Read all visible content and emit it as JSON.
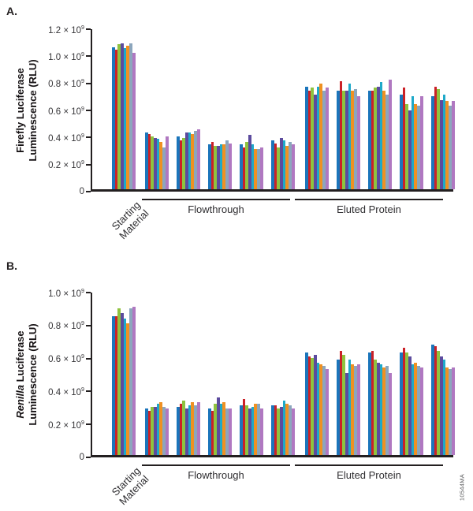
{
  "figure": {
    "code": "10544MA"
  },
  "chart_data": [
    {
      "panel_label": "A.",
      "type": "bar",
      "ylabel_line1_italic": "",
      "ylabel_line1_rest": "Firefly Luciferase",
      "ylabel_line2": "Luminescence (RLU)",
      "unit": "RLU",
      "value_scale": "1e9",
      "ymax": 1.2,
      "ytick_values": [
        1.2,
        1.0,
        0.8,
        0.6,
        0.4,
        0.2,
        0
      ],
      "ytick_labels": [
        "1.2 × 10⁹",
        "1.0 × 10⁹",
        "0.8 × 10⁹",
        "0.6 × 10⁹",
        "0.4 × 10⁹",
        "0.2 × 10⁹",
        "0"
      ],
      "grid": false,
      "legend": false,
      "bar_colors": [
        "#1b75bb",
        "#cb2127",
        "#8fc33f",
        "#5c4b9e",
        "#1ea9c9",
        "#ef9122",
        "#8ca6bd",
        "#b078c1"
      ],
      "sections": [
        {
          "label": "Starting Material",
          "rotated": true,
          "bracket": false,
          "groups": [
            [
              1.05,
              1.03,
              1.07,
              1.08,
              1.04,
              1.06,
              1.08,
              1.01
            ]
          ]
        },
        {
          "label": "Flowthrough",
          "rotated": false,
          "bracket": true,
          "groups": [
            [
              0.42,
              0.41,
              0.39,
              0.38,
              0.37,
              0.35,
              0.31,
              0.39
            ],
            [
              0.39,
              0.36,
              0.38,
              0.42,
              0.42,
              0.41,
              0.43,
              0.44
            ],
            [
              0.33,
              0.35,
              0.32,
              0.32,
              0.33,
              0.33,
              0.36,
              0.34
            ],
            [
              0.33,
              0.31,
              0.35,
              0.4,
              0.33,
              0.3,
              0.3,
              0.31
            ],
            [
              0.36,
              0.34,
              0.31,
              0.38,
              0.36,
              0.32,
              0.35,
              0.33
            ]
          ]
        },
        {
          "label": "Eluted Protein",
          "rotated": false,
          "bracket": true,
          "groups": [
            [
              0.76,
              0.73,
              0.75,
              0.7,
              0.76,
              0.78,
              0.73,
              0.75
            ],
            [
              0.73,
              0.8,
              0.73,
              0.73,
              0.78,
              0.73,
              0.74,
              0.69
            ],
            [
              0.73,
              0.73,
              0.75,
              0.76,
              0.79,
              0.73,
              0.7,
              0.81
            ],
            [
              0.7,
              0.75,
              0.63,
              0.58,
              0.69,
              0.63,
              0.62,
              0.69
            ],
            [
              0.69,
              0.76,
              0.74,
              0.66,
              0.7,
              0.65,
              0.62,
              0.65
            ]
          ]
        }
      ]
    },
    {
      "panel_label": "B.",
      "type": "bar",
      "ylabel_line1_italic": "Renilla",
      "ylabel_line1_rest": " Luciferase",
      "ylabel_line2": "Luminescence (RLU)",
      "unit": "RLU",
      "value_scale": "1e9",
      "ymax": 1.0,
      "ytick_values": [
        1.0,
        0.8,
        0.6,
        0.4,
        0.2,
        0
      ],
      "ytick_labels": [
        "1.0 × 10⁹",
        "0.8 × 10⁹",
        "0.6 × 10⁹",
        "0.4 × 10⁹",
        "0.2 × 10⁹",
        "0"
      ],
      "grid": false,
      "legend": false,
      "bar_colors": [
        "#1b75bb",
        "#cb2127",
        "#8fc33f",
        "#5c4b9e",
        "#1ea9c9",
        "#ef9122",
        "#8ca6bd",
        "#b078c1"
      ],
      "sections": [
        {
          "label": "Starting Material",
          "rotated": true,
          "bracket": false,
          "groups": [
            [
              0.84,
              0.84,
              0.89,
              0.86,
              0.83,
              0.8,
              0.89,
              0.9
            ]
          ]
        },
        {
          "label": "Flowthrough",
          "rotated": false,
          "bracket": true,
          "groups": [
            [
              0.28,
              0.27,
              0.29,
              0.29,
              0.31,
              0.32,
              0.29,
              0.28
            ],
            [
              0.29,
              0.31,
              0.33,
              0.28,
              0.3,
              0.32,
              0.3,
              0.32
            ],
            [
              0.28,
              0.27,
              0.31,
              0.35,
              0.31,
              0.32,
              0.28,
              0.28
            ],
            [
              0.3,
              0.34,
              0.3,
              0.28,
              0.29,
              0.31,
              0.31,
              0.28
            ],
            [
              0.3,
              0.3,
              0.28,
              0.29,
              0.33,
              0.31,
              0.3,
              0.28
            ]
          ]
        },
        {
          "label": "Eluted Protein",
          "rotated": false,
          "bracket": true,
          "groups": [
            [
              0.62,
              0.6,
              0.59,
              0.61,
              0.56,
              0.55,
              0.54,
              0.52
            ],
            [
              0.58,
              0.63,
              0.61,
              0.5,
              0.58,
              0.55,
              0.54,
              0.55
            ],
            [
              0.62,
              0.63,
              0.58,
              0.56,
              0.55,
              0.53,
              0.54,
              0.5
            ],
            [
              0.62,
              0.65,
              0.62,
              0.6,
              0.55,
              0.56,
              0.54,
              0.53
            ],
            [
              0.67,
              0.66,
              0.63,
              0.6,
              0.58,
              0.53,
              0.52,
              0.53
            ]
          ]
        }
      ]
    }
  ]
}
